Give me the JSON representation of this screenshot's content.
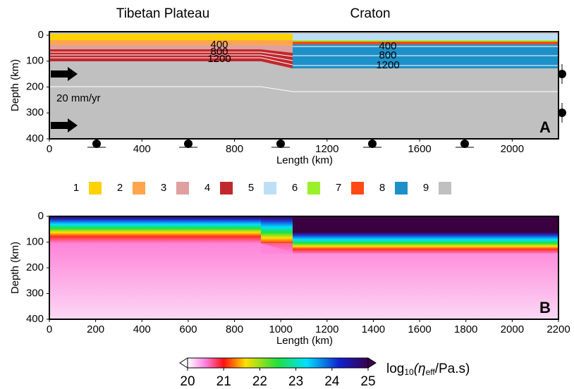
{
  "chart_data": [
    {
      "type": "model-section",
      "panel_label": "A",
      "regions": [
        "Tibetan Plateau",
        "Craton"
      ],
      "annotation": "20 mm/yr",
      "isotherm_labels": [
        "400",
        "800",
        "1200",
        "400",
        "800",
        "1200"
      ],
      "x_label": "Length (km)",
      "y_label": "Depth (km)",
      "xlim": [
        0,
        2200
      ],
      "ylim": [
        400,
        0
      ],
      "xticks": [
        0,
        400,
        800,
        1200,
        1600,
        2000
      ],
      "yticks": [
        0,
        100,
        200,
        300,
        400
      ],
      "legend": [
        {
          "name": "1",
          "color": "#ffd200"
        },
        {
          "name": "2",
          "color": "#ffa64d"
        },
        {
          "name": "3",
          "color": "#dfa0a0"
        },
        {
          "name": "4",
          "color": "#c0282d"
        },
        {
          "name": "5",
          "color": "#bcdff5"
        },
        {
          "name": "6",
          "color": "#9af02a"
        },
        {
          "name": "7",
          "color": "#ff4a14"
        },
        {
          "name": "8",
          "color": "#1e90c8"
        },
        {
          "name": "9",
          "color": "#c0c0c0"
        }
      ]
    },
    {
      "type": "viscosity-section",
      "panel_label": "B",
      "x_label": "Length (km)",
      "y_label": "Depth (km)",
      "xlim": [
        0,
        2200
      ],
      "ylim": [
        400,
        0
      ],
      "xticks": [
        0,
        200,
        400,
        600,
        800,
        1000,
        1200,
        1400,
        1600,
        1800,
        2000,
        2200
      ],
      "yticks": [
        0,
        100,
        200,
        300,
        400
      ],
      "colorbar": {
        "lim": [
          20,
          25
        ],
        "ticks": [
          20,
          21,
          22,
          23,
          24,
          25
        ],
        "label_parts": [
          "log",
          "10",
          "(η",
          "eff",
          "/Pa.s)"
        ]
      }
    }
  ]
}
